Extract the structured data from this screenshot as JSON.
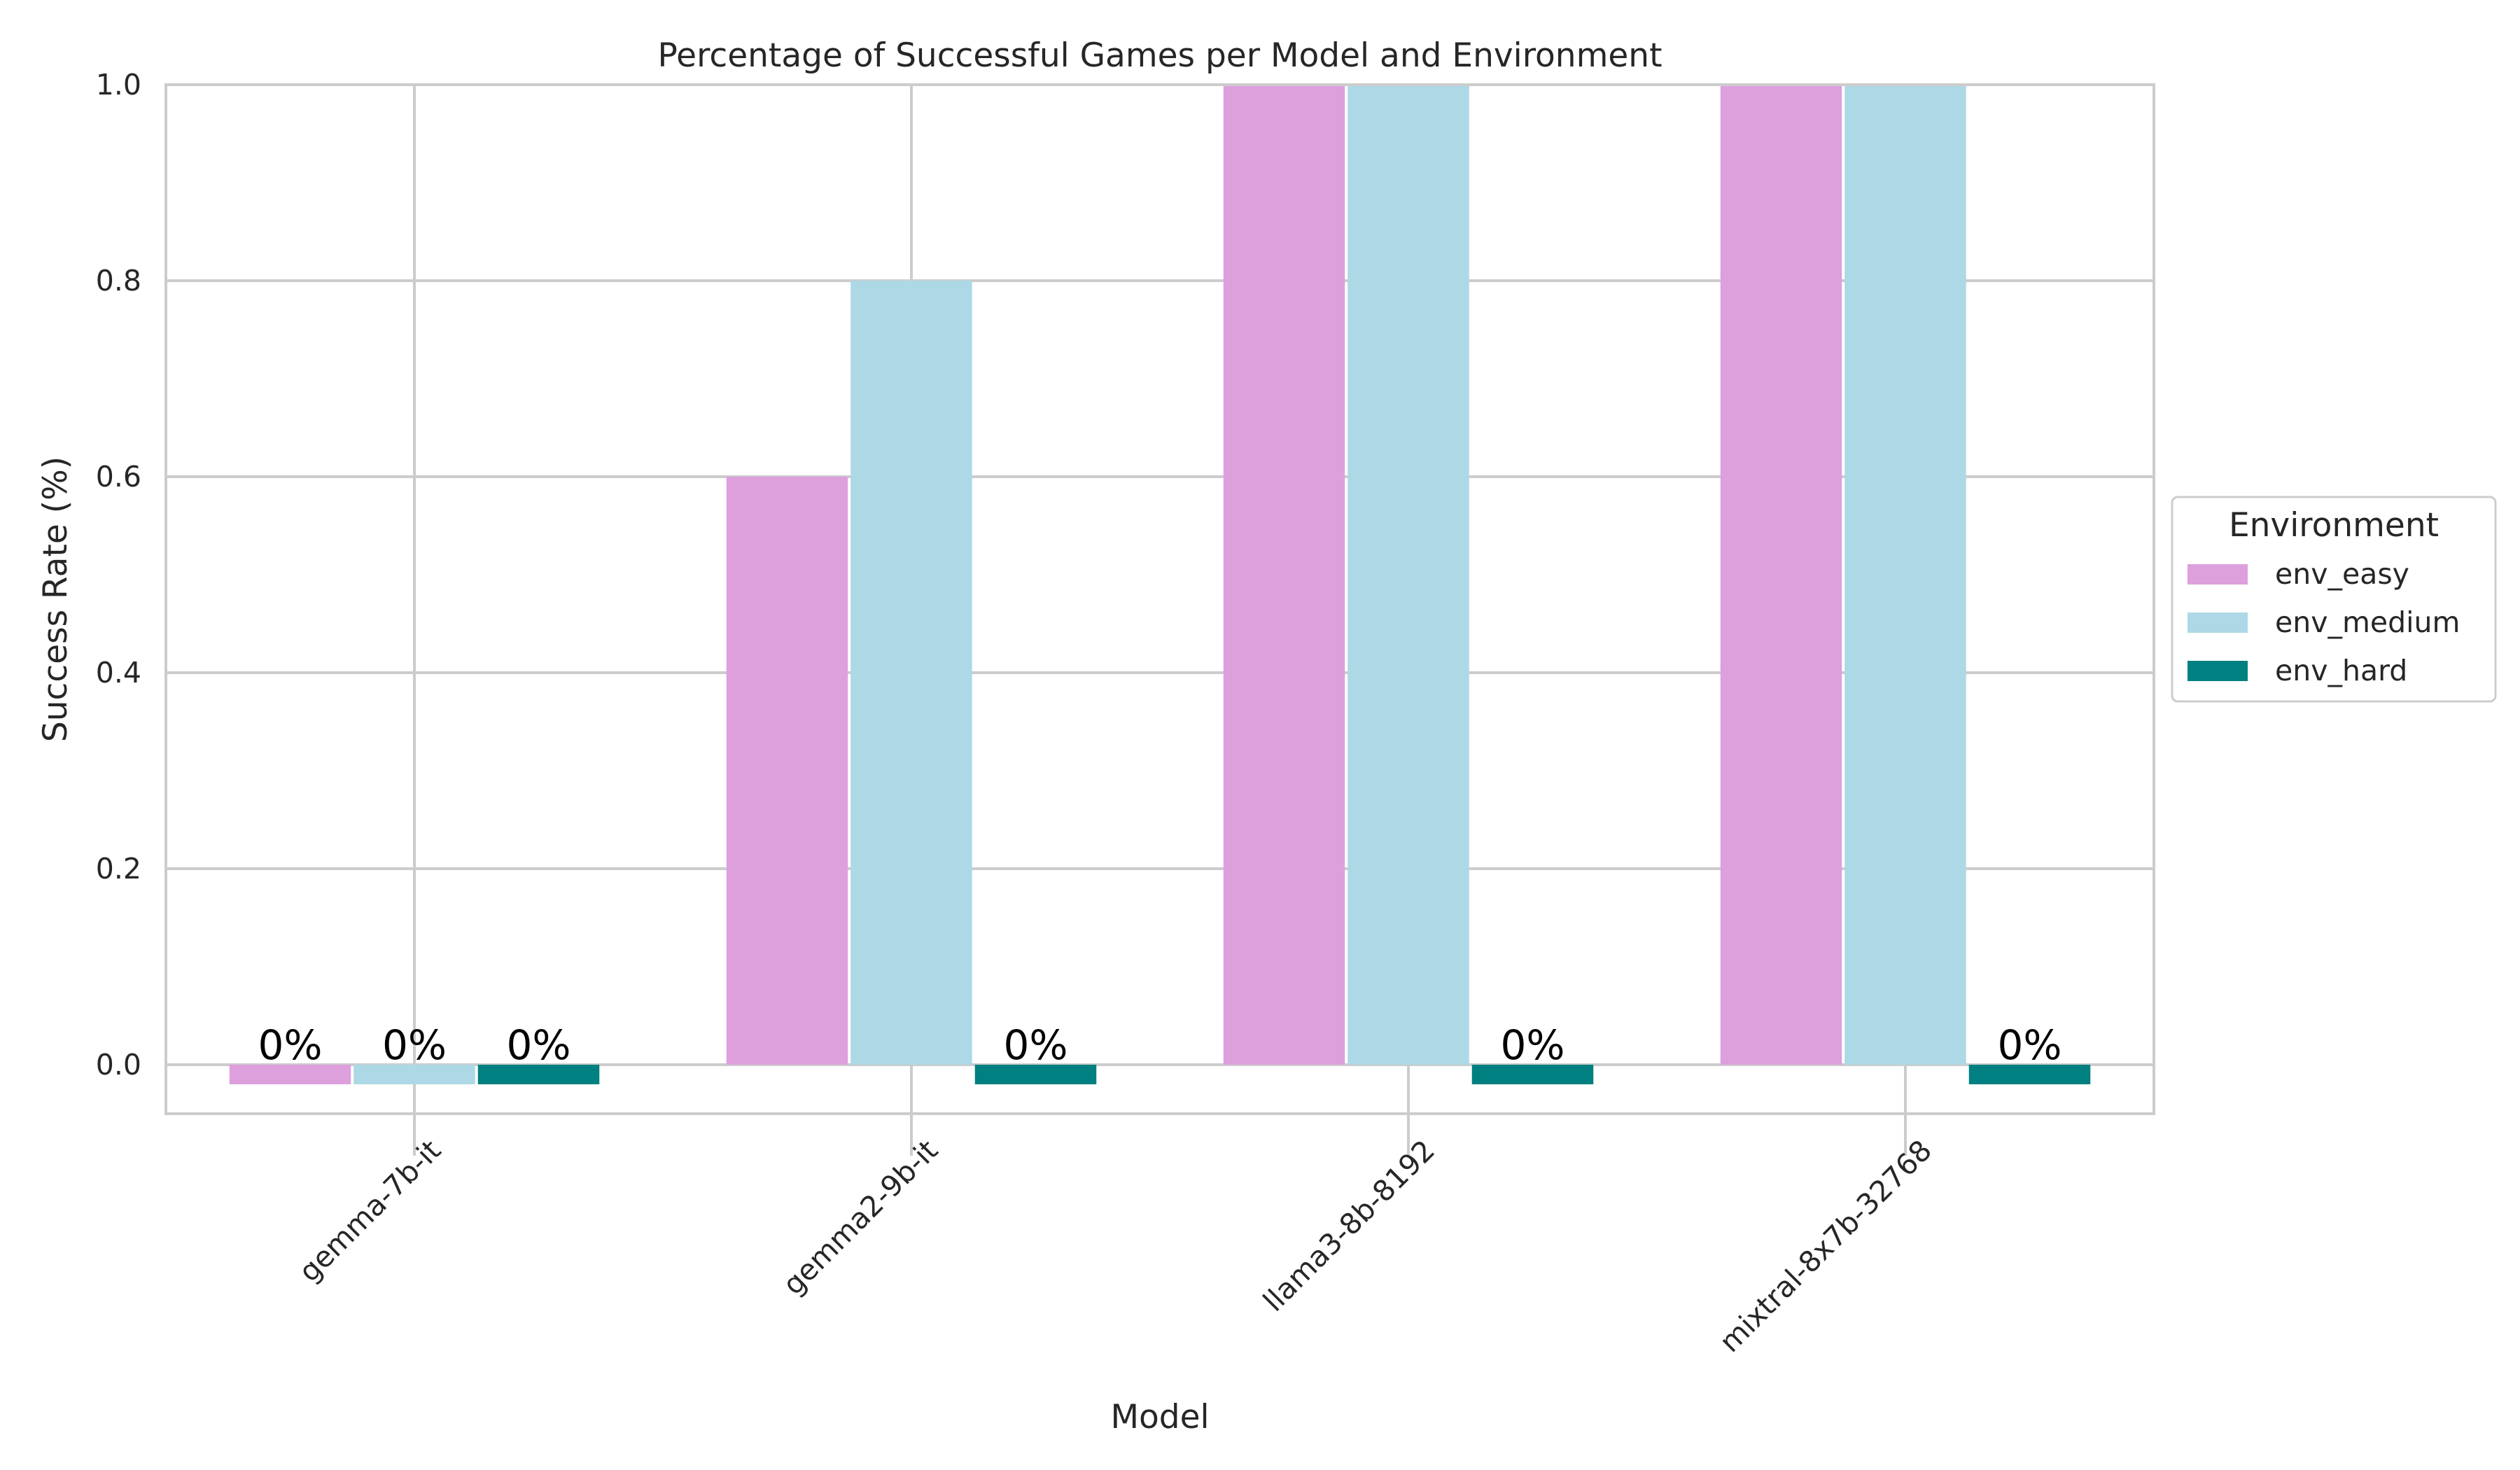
{
  "chart_data": {
    "type": "bar",
    "title": "Percentage of Successful Games per Model and Environment",
    "xlabel": "Model",
    "ylabel": "Success Rate (%)",
    "categories": [
      "gemma-7b-it",
      "gemma2-9b-it",
      "llama3-8b-8192",
      "mixtral-8x7b-32768"
    ],
    "series": [
      {
        "name": "env_easy",
        "color": "#dda0dd",
        "values": [
          0,
          0.6,
          1.0,
          1.0
        ]
      },
      {
        "name": "env_medium",
        "color": "#add8e6",
        "values": [
          0,
          0.8,
          1.0,
          1.0
        ]
      },
      {
        "name": "env_hard",
        "color": "#008080",
        "values": [
          0,
          0,
          0,
          0
        ]
      }
    ],
    "zero_marker_value": -0.02,
    "zero_label": "0%",
    "ylim": [
      -0.05,
      1.0
    ],
    "yticks": [
      "0.0",
      "0.2",
      "0.4",
      "0.6",
      "0.8",
      "1.0"
    ],
    "ytick_values": [
      0,
      0.2,
      0.4,
      0.6,
      0.8,
      1.0
    ],
    "grid": true,
    "legend": {
      "title": "Environment",
      "position": "right-center"
    }
  }
}
